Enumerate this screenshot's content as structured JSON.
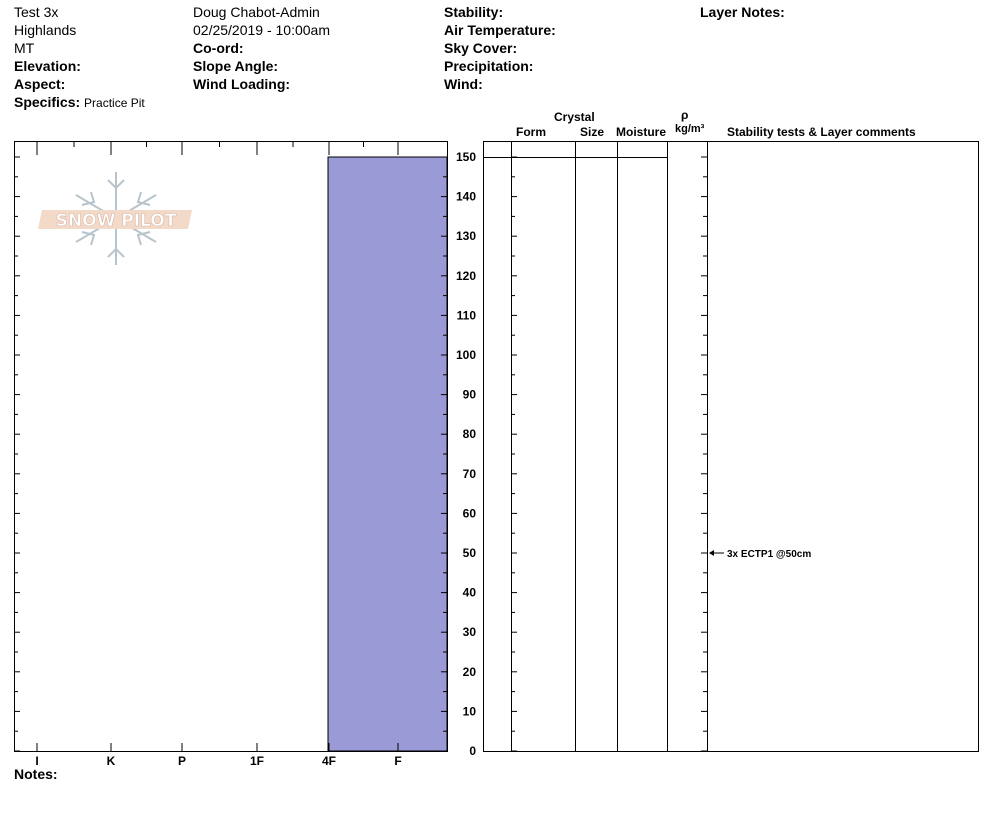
{
  "header": {
    "col1": [
      "Test 3x",
      "Highlands",
      "MT"
    ],
    "elevation_label": "Elevation:",
    "aspect_label": "Aspect:",
    "specifics_label": "Specifics:",
    "specifics_value": "Practice Pit",
    "observer": "Doug Chabot-Admin",
    "datetime": "02/25/2019 - 10:00am",
    "coord_label": "Co-ord:",
    "slope_angle_label": "Slope Angle:",
    "wind_loading_label": "Wind Loading:",
    "stability_label": "Stability:",
    "air_temp_label": "Air Temperature:",
    "sky_cover_label": "Sky Cover:",
    "precipitation_label": "Precipitation:",
    "wind_label": "Wind:",
    "layer_notes_label": "Layer Notes:"
  },
  "columns": {
    "crystal": "Crystal",
    "form": "Form",
    "size": "Size",
    "moisture": "Moisture",
    "rho": "ρ",
    "density_unit": "kg/m³",
    "stability_comments": "Stability tests & Layer comments"
  },
  "notes_label": "Notes:",
  "logo_text": "SNOW PILOT",
  "colors": {
    "hardness_fill": "#9a9ad6",
    "logo_fill": "#f2d9c8",
    "logo_snowflake": "#b8c4cc"
  },
  "chart_data": {
    "type": "bar",
    "title": "",
    "x_categories": [
      "I",
      "K",
      "P",
      "1F",
      "4F",
      "F"
    ],
    "y_ticks": [
      0,
      10,
      20,
      30,
      40,
      50,
      60,
      70,
      80,
      90,
      100,
      110,
      120,
      130,
      140,
      150
    ],
    "ylim": [
      0,
      150
    ],
    "layers": [
      {
        "top": 150,
        "bottom": 0,
        "hardness": "4F"
      }
    ],
    "stability_tests": [
      {
        "depth": 50,
        "label": "3x ECTP1 @50cm"
      }
    ]
  }
}
